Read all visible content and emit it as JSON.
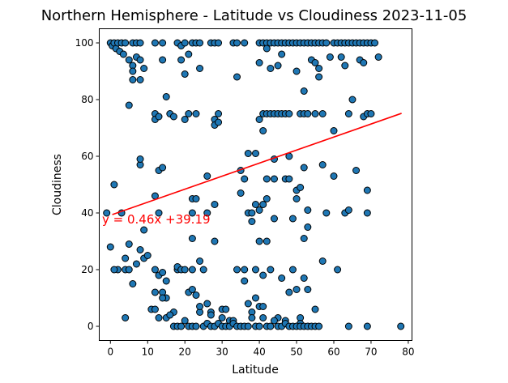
{
  "chart_data": {
    "type": "scatter",
    "title": "Northern Hemisphere - Latitude vs Cloudiness 2023-11-05",
    "xlabel": "Latitude",
    "ylabel": "Cloudiness",
    "xlim": [
      -3,
      81
    ],
    "ylim": [
      -5,
      105
    ],
    "xticks": [
      "0",
      "10",
      "20",
      "30",
      "40",
      "50",
      "60",
      "70",
      "80"
    ],
    "yticks": [
      "0",
      "20",
      "40",
      "60",
      "80",
      "100"
    ],
    "grid": false,
    "marker_color": "#1f77b4",
    "marker_edge_color": "#000000",
    "regression": {
      "equation": "y = 0.46x +39.19",
      "slope": 0.46,
      "intercept": 39.19,
      "x_range": [
        0.5,
        78.2
      ],
      "color": "#ff0000"
    },
    "points": [
      [
        0,
        100
      ],
      [
        0.5,
        99
      ],
      [
        1,
        100
      ],
      [
        1.5,
        98
      ],
      [
        2,
        100
      ],
      [
        2.5,
        97
      ],
      [
        3,
        100
      ],
      [
        3.5,
        96
      ],
      [
        4,
        100
      ],
      [
        6,
        100
      ],
      [
        7,
        100
      ],
      [
        8,
        100
      ],
      [
        12,
        100
      ],
      [
        14,
        100
      ],
      [
        18,
        100
      ],
      [
        19,
        99
      ],
      [
        20,
        100
      ],
      [
        22,
        100
      ],
      [
        23,
        100
      ],
      [
        24,
        100
      ],
      [
        27,
        100
      ],
      [
        28,
        100
      ],
      [
        29,
        100
      ],
      [
        33,
        100
      ],
      [
        34,
        100
      ],
      [
        36,
        100
      ],
      [
        40,
        100
      ],
      [
        41,
        100
      ],
      [
        42,
        100
      ],
      [
        43,
        100
      ],
      [
        44,
        100
      ],
      [
        45,
        100
      ],
      [
        46,
        100
      ],
      [
        47,
        100
      ],
      [
        48,
        100
      ],
      [
        49,
        100
      ],
      [
        50,
        100
      ],
      [
        51,
        100
      ],
      [
        52,
        100
      ],
      [
        53,
        100
      ],
      [
        54,
        100
      ],
      [
        55,
        100
      ],
      [
        56,
        100
      ],
      [
        57,
        100
      ],
      [
        58,
        100
      ],
      [
        60,
        100
      ],
      [
        61,
        100
      ],
      [
        62,
        100
      ],
      [
        63,
        100
      ],
      [
        64,
        100
      ],
      [
        65,
        100
      ],
      [
        66,
        100
      ],
      [
        67,
        100
      ],
      [
        68,
        100
      ],
      [
        69,
        100
      ],
      [
        70,
        100
      ],
      [
        71,
        100
      ],
      [
        5,
        94
      ],
      [
        6,
        92
      ],
      [
        7,
        95
      ],
      [
        8,
        94
      ],
      [
        8,
        87
      ],
      [
        9,
        91
      ],
      [
        6,
        90
      ],
      [
        6,
        87
      ],
      [
        14,
        94
      ],
      [
        19,
        94
      ],
      [
        21,
        96
      ],
      [
        20,
        89
      ],
      [
        24,
        91
      ],
      [
        34,
        88
      ],
      [
        40,
        93
      ],
      [
        42,
        98
      ],
      [
        43,
        91
      ],
      [
        45,
        92
      ],
      [
        46,
        96
      ],
      [
        50,
        90
      ],
      [
        54,
        94
      ],
      [
        55,
        93
      ],
      [
        56,
        88
      ],
      [
        59,
        95
      ],
      [
        62,
        95
      ],
      [
        63,
        92
      ],
      [
        67,
        94
      ],
      [
        68,
        93
      ],
      [
        72,
        95
      ],
      [
        56,
        91
      ],
      [
        52,
        83
      ],
      [
        65,
        80
      ],
      [
        5,
        78
      ],
      [
        12,
        75
      ],
      [
        12,
        73
      ],
      [
        13,
        74
      ],
      [
        15,
        81
      ],
      [
        16,
        75
      ],
      [
        17,
        74
      ],
      [
        20,
        73
      ],
      [
        21,
        75
      ],
      [
        23,
        75
      ],
      [
        28,
        73
      ],
      [
        28,
        71
      ],
      [
        29,
        75
      ],
      [
        29,
        72
      ],
      [
        40,
        73
      ],
      [
        41,
        75
      ],
      [
        42,
        75
      ],
      [
        43,
        75
      ],
      [
        44,
        75
      ],
      [
        45,
        75
      ],
      [
        46,
        75
      ],
      [
        47,
        75
      ],
      [
        48,
        75
      ],
      [
        51,
        75
      ],
      [
        52,
        75
      ],
      [
        53,
        75
      ],
      [
        55,
        75
      ],
      [
        57,
        75
      ],
      [
        60,
        69
      ],
      [
        64,
        75
      ],
      [
        68,
        74
      ],
      [
        69,
        75
      ],
      [
        70,
        75
      ],
      [
        41,
        69
      ],
      [
        39,
        61
      ],
      [
        37,
        61
      ],
      [
        44,
        59
      ],
      [
        48,
        60
      ],
      [
        8,
        57
      ],
      [
        8,
        59
      ],
      [
        13,
        55
      ],
      [
        14,
        56
      ],
      [
        26,
        53
      ],
      [
        35,
        55
      ],
      [
        36,
        52
      ],
      [
        42,
        52
      ],
      [
        44,
        52
      ],
      [
        47,
        52
      ],
      [
        48,
        52
      ],
      [
        50,
        48
      ],
      [
        51,
        49
      ],
      [
        52,
        56
      ],
      [
        53,
        41
      ],
      [
        57,
        57
      ],
      [
        58,
        40
      ],
      [
        60,
        53
      ],
      [
        63,
        40
      ],
      [
        64,
        41
      ],
      [
        66,
        55
      ],
      [
        69,
        48
      ],
      [
        69,
        40
      ],
      [
        1,
        50
      ],
      [
        3,
        40
      ],
      [
        12,
        46
      ],
      [
        13,
        40
      ],
      [
        22,
        45
      ],
      [
        23,
        45
      ],
      [
        22,
        40
      ],
      [
        26,
        40
      ],
      [
        28,
        43
      ],
      [
        35,
        47
      ],
      [
        37,
        40
      ],
      [
        38,
        37
      ],
      [
        38,
        40
      ],
      [
        39,
        43
      ],
      [
        40,
        41
      ],
      [
        41,
        43
      ],
      [
        42,
        45
      ],
      [
        44,
        38
      ],
      [
        49,
        38
      ],
      [
        50,
        45
      ],
      [
        53,
        35
      ],
      [
        52,
        31
      ],
      [
        2,
        20
      ],
      [
        4,
        24
      ],
      [
        4,
        20
      ],
      [
        5,
        20
      ],
      [
        5,
        29
      ],
      [
        6,
        15
      ],
      [
        7,
        22
      ],
      [
        8,
        27
      ],
      [
        9,
        34
      ],
      [
        9,
        24
      ],
      [
        10,
        25
      ],
      [
        12,
        20
      ],
      [
        12,
        12
      ],
      [
        13,
        18
      ],
      [
        14,
        19
      ],
      [
        14,
        12
      ],
      [
        15,
        16
      ],
      [
        15,
        10
      ],
      [
        17,
        5
      ],
      [
        18,
        20
      ],
      [
        18,
        21
      ],
      [
        19,
        20
      ],
      [
        20,
        20
      ],
      [
        21,
        12
      ],
      [
        22,
        13
      ],
      [
        22,
        20
      ],
      [
        23,
        11
      ],
      [
        24,
        23
      ],
      [
        22,
        31
      ],
      [
        25,
        20
      ],
      [
        26,
        8
      ],
      [
        27,
        5
      ],
      [
        28,
        30
      ],
      [
        30,
        6
      ],
      [
        31,
        6
      ],
      [
        32,
        2
      ],
      [
        33,
        2
      ],
      [
        34,
        20
      ],
      [
        36,
        20
      ],
      [
        36,
        16
      ],
      [
        37,
        8
      ],
      [
        38,
        5
      ],
      [
        39,
        20
      ],
      [
        39,
        10
      ],
      [
        40,
        7
      ],
      [
        40,
        30
      ],
      [
        41,
        18
      ],
      [
        41,
        7
      ],
      [
        42,
        30
      ],
      [
        43,
        20
      ],
      [
        45,
        3
      ],
      [
        46,
        17
      ],
      [
        47,
        2
      ],
      [
        48,
        12
      ],
      [
        49,
        20
      ],
      [
        50,
        13
      ],
      [
        51,
        3
      ],
      [
        51,
        1
      ],
      [
        52,
        17
      ],
      [
        53,
        13
      ],
      [
        55,
        6
      ],
      [
        57,
        23
      ],
      [
        61,
        20
      ],
      [
        0,
        28
      ],
      [
        -1,
        40
      ],
      [
        1,
        20
      ],
      [
        4,
        3
      ],
      [
        11,
        6
      ],
      [
        12,
        6
      ],
      [
        13,
        3
      ],
      [
        14,
        10
      ],
      [
        15,
        3
      ],
      [
        16,
        4
      ],
      [
        17,
        0
      ],
      [
        18,
        0
      ],
      [
        19,
        0
      ],
      [
        20,
        2
      ],
      [
        21,
        0
      ],
      [
        22,
        0
      ],
      [
        23,
        0
      ],
      [
        24,
        5
      ],
      [
        24,
        7
      ],
      [
        25,
        0
      ],
      [
        26,
        1
      ],
      [
        27,
        0
      ],
      [
        27,
        4
      ],
      [
        28,
        0
      ],
      [
        29,
        1
      ],
      [
        30,
        0
      ],
      [
        30,
        3
      ],
      [
        31,
        0
      ],
      [
        32,
        0
      ],
      [
        33,
        1
      ],
      [
        34,
        0
      ],
      [
        35,
        0
      ],
      [
        36,
        0
      ],
      [
        37,
        0
      ],
      [
        38,
        3
      ],
      [
        39,
        0
      ],
      [
        40,
        0
      ],
      [
        41,
        3
      ],
      [
        42,
        0
      ],
      [
        43,
        0
      ],
      [
        44,
        2
      ],
      [
        45,
        0
      ],
      [
        46,
        0
      ],
      [
        47,
        1
      ],
      [
        48,
        0
      ],
      [
        49,
        0
      ],
      [
        50,
        0
      ],
      [
        51,
        0
      ],
      [
        52,
        0
      ],
      [
        53,
        0
      ],
      [
        54,
        0
      ],
      [
        55,
        0
      ],
      [
        56,
        0
      ],
      [
        64,
        0
      ],
      [
        69,
        0
      ],
      [
        78,
        0
      ]
    ]
  }
}
